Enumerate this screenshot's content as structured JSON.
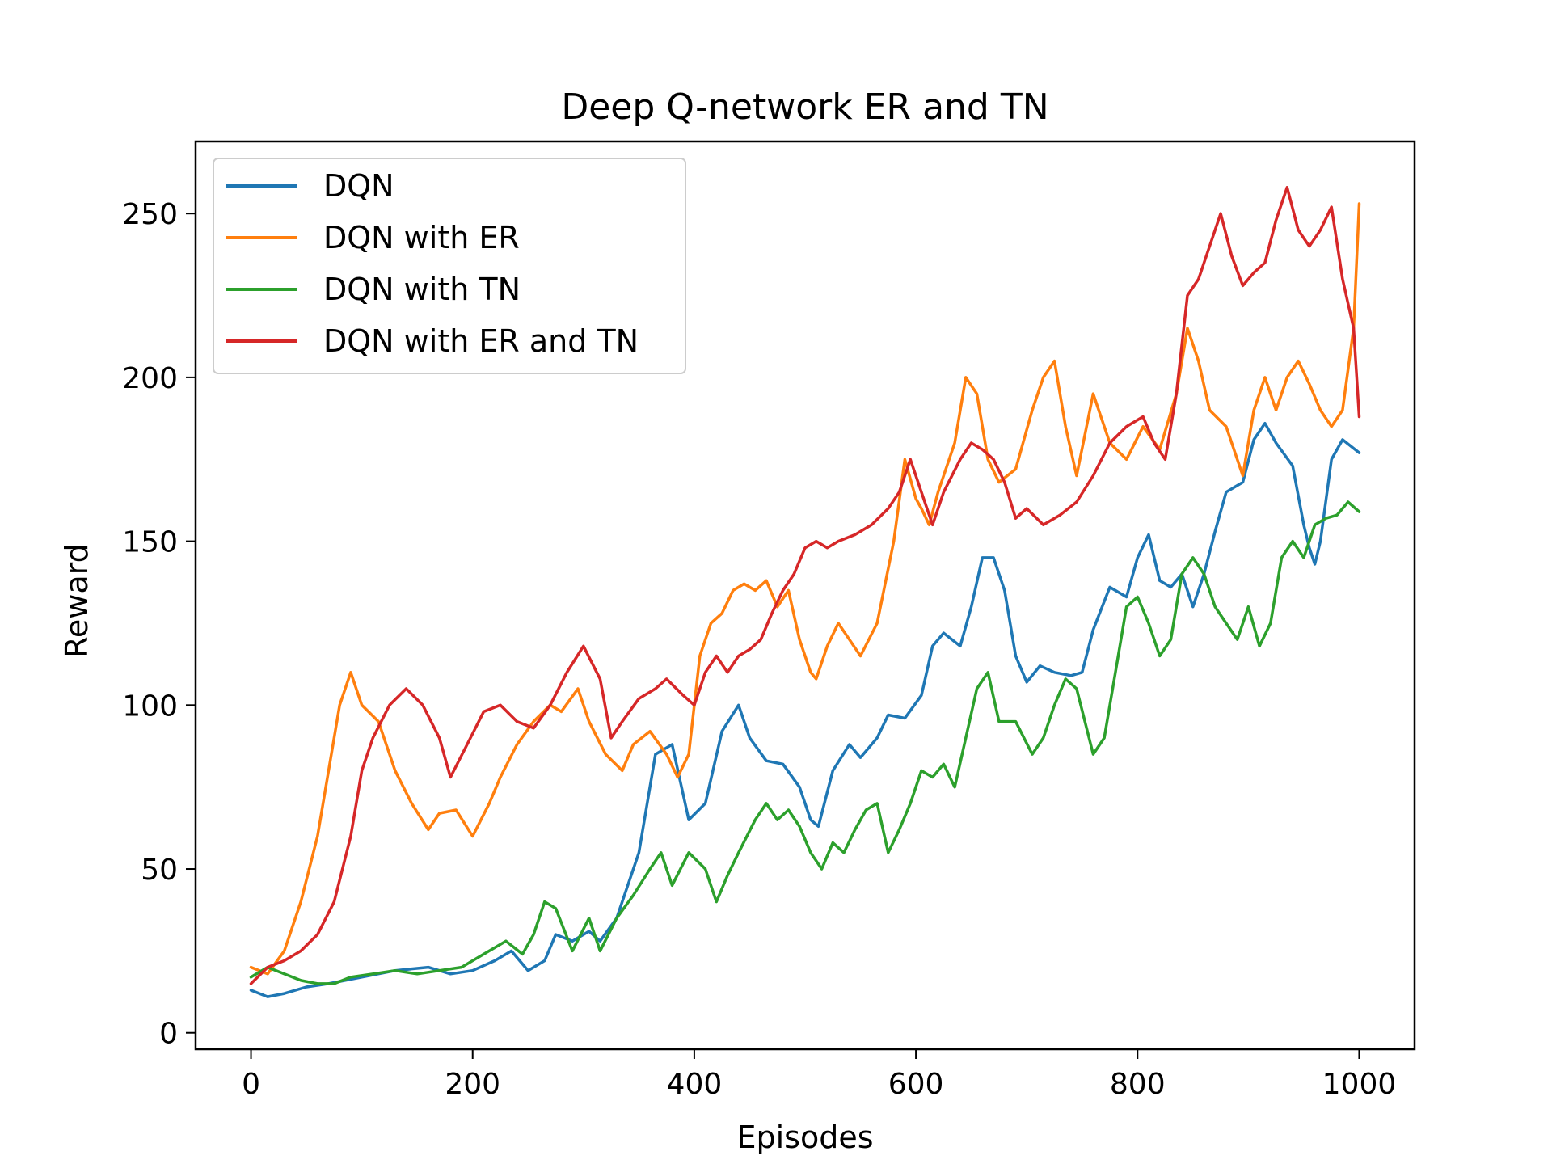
{
  "chart_data": {
    "type": "line",
    "title": "Deep Q-network ER and TN",
    "xlabel": "Episodes",
    "ylabel": "Reward",
    "xlim": [
      -50,
      1050
    ],
    "ylim": [
      -5,
      272
    ],
    "xticks": [
      0,
      200,
      400,
      600,
      800,
      1000
    ],
    "yticks": [
      0,
      50,
      100,
      150,
      200,
      250
    ],
    "grid": false,
    "legend_position": "top-left",
    "series": [
      {
        "name": "DQN",
        "color": "#1f77b4",
        "x": [
          0,
          15,
          30,
          50,
          70,
          100,
          130,
          160,
          180,
          200,
          220,
          235,
          250,
          265,
          275,
          290,
          305,
          315,
          330,
          350,
          365,
          380,
          395,
          410,
          425,
          440,
          450,
          465,
          480,
          495,
          505,
          512,
          525,
          540,
          550,
          565,
          575,
          590,
          605,
          615,
          625,
          640,
          650,
          660,
          670,
          680,
          690,
          700,
          712,
          725,
          740,
          750,
          760,
          775,
          790,
          800,
          810,
          820,
          830,
          840,
          850,
          860,
          870,
          880,
          895,
          905,
          915,
          925,
          940,
          950,
          955,
          960,
          965,
          975,
          985,
          1000
        ],
        "y": [
          13,
          11,
          12,
          14,
          15,
          17,
          19,
          20,
          18,
          19,
          22,
          25,
          19,
          22,
          30,
          28,
          31,
          28,
          35,
          55,
          85,
          88,
          65,
          70,
          92,
          100,
          90,
          83,
          82,
          75,
          65,
          63,
          80,
          88,
          84,
          90,
          97,
          96,
          103,
          118,
          122,
          118,
          130,
          145,
          145,
          135,
          115,
          107,
          112,
          110,
          109,
          110,
          123,
          136,
          133,
          145,
          152,
          138,
          136,
          140,
          130,
          140,
          153,
          165,
          168,
          181,
          186,
          180,
          173,
          155,
          148,
          143,
          150,
          175,
          181,
          177
        ]
      },
      {
        "name": "DQN with ER",
        "color": "#ff7f0e",
        "x": [
          0,
          15,
          30,
          45,
          60,
          70,
          80,
          90,
          100,
          115,
          130,
          145,
          160,
          170,
          185,
          200,
          215,
          225,
          240,
          255,
          270,
          280,
          295,
          305,
          320,
          335,
          345,
          360,
          375,
          385,
          395,
          405,
          415,
          425,
          435,
          445,
          455,
          465,
          475,
          485,
          495,
          505,
          510,
          520,
          530,
          540,
          550,
          565,
          580,
          590,
          600,
          605,
          612,
          620,
          635,
          645,
          655,
          665,
          675,
          690,
          705,
          715,
          725,
          735,
          745,
          760,
          775,
          790,
          805,
          820,
          835,
          845,
          855,
          865,
          880,
          895,
          905,
          915,
          925,
          935,
          945,
          955,
          965,
          975,
          985,
          995,
          1000
        ],
        "y": [
          20,
          18,
          25,
          40,
          60,
          80,
          100,
          110,
          100,
          95,
          80,
          70,
          62,
          67,
          68,
          60,
          70,
          78,
          88,
          95,
          100,
          98,
          105,
          95,
          85,
          80,
          88,
          92,
          85,
          78,
          85,
          115,
          125,
          128,
          135,
          137,
          135,
          138,
          130,
          135,
          120,
          110,
          108,
          118,
          125,
          120,
          115,
          125,
          150,
          175,
          163,
          160,
          155,
          165,
          180,
          200,
          195,
          175,
          168,
          172,
          190,
          200,
          205,
          185,
          170,
          195,
          180,
          175,
          185,
          178,
          195,
          215,
          205,
          190,
          185,
          170,
          190,
          200,
          190,
          200,
          205,
          198,
          190,
          185,
          190,
          215,
          253
        ]
      },
      {
        "name": "DQN with TN",
        "color": "#2ca02c",
        "x": [
          0,
          15,
          30,
          45,
          60,
          75,
          90,
          110,
          130,
          150,
          170,
          190,
          210,
          230,
          245,
          255,
          265,
          275,
          290,
          305,
          315,
          330,
          345,
          360,
          370,
          380,
          395,
          410,
          420,
          430,
          440,
          455,
          465,
          475,
          485,
          495,
          505,
          515,
          525,
          535,
          545,
          555,
          565,
          575,
          585,
          595,
          605,
          615,
          625,
          635,
          645,
          655,
          665,
          675,
          690,
          705,
          715,
          725,
          735,
          745,
          760,
          770,
          780,
          790,
          800,
          810,
          820,
          830,
          840,
          850,
          860,
          870,
          880,
          890,
          900,
          910,
          920,
          930,
          940,
          950,
          960,
          970,
          980,
          990,
          1000
        ],
        "y": [
          17,
          20,
          18,
          16,
          15,
          15,
          17,
          18,
          19,
          18,
          19,
          20,
          24,
          28,
          24,
          30,
          40,
          38,
          25,
          35,
          25,
          35,
          42,
          50,
          55,
          45,
          55,
          50,
          40,
          48,
          55,
          65,
          70,
          65,
          68,
          63,
          55,
          50,
          58,
          55,
          62,
          68,
          70,
          55,
          62,
          70,
          80,
          78,
          82,
          75,
          90,
          105,
          110,
          95,
          95,
          85,
          90,
          100,
          108,
          105,
          85,
          90,
          110,
          130,
          133,
          125,
          115,
          120,
          140,
          145,
          140,
          130,
          125,
          120,
          130,
          118,
          125,
          145,
          150,
          145,
          155,
          157,
          158,
          162,
          159
        ]
      },
      {
        "name": "DQN with ER and TN",
        "color": "#d62728",
        "x": [
          0,
          15,
          30,
          45,
          60,
          75,
          90,
          100,
          110,
          125,
          140,
          155,
          170,
          180,
          195,
          210,
          225,
          240,
          255,
          270,
          285,
          300,
          315,
          325,
          335,
          350,
          365,
          375,
          390,
          400,
          410,
          420,
          430,
          440,
          450,
          460,
          470,
          480,
          490,
          500,
          510,
          520,
          530,
          545,
          560,
          575,
          585,
          595,
          605,
          615,
          625,
          640,
          650,
          660,
          670,
          680,
          690,
          700,
          715,
          730,
          745,
          760,
          775,
          790,
          805,
          815,
          825,
          835,
          845,
          855,
          865,
          875,
          885,
          895,
          905,
          915,
          925,
          935,
          945,
          955,
          965,
          975,
          985,
          995,
          1000
        ],
        "y": [
          15,
          20,
          22,
          25,
          30,
          40,
          60,
          80,
          90,
          100,
          105,
          100,
          90,
          78,
          88,
          98,
          100,
          95,
          93,
          100,
          110,
          118,
          108,
          90,
          95,
          102,
          105,
          108,
          103,
          100,
          110,
          115,
          110,
          115,
          117,
          120,
          128,
          135,
          140,
          148,
          150,
          148,
          150,
          152,
          155,
          160,
          165,
          175,
          165,
          155,
          165,
          175,
          180,
          178,
          175,
          168,
          157,
          160,
          155,
          158,
          162,
          170,
          180,
          185,
          188,
          180,
          175,
          195,
          225,
          230,
          240,
          250,
          237,
          228,
          232,
          235,
          248,
          258,
          245,
          240,
          245,
          252,
          230,
          215,
          188
        ]
      }
    ]
  }
}
